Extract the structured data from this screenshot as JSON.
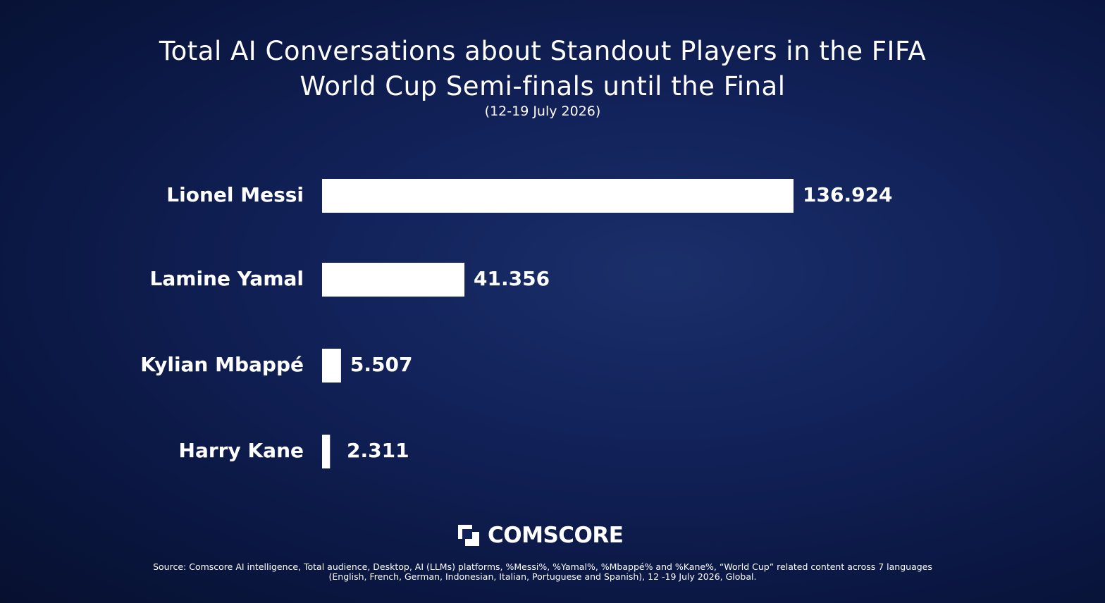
{
  "chart_data": {
    "type": "bar",
    "orientation": "horizontal",
    "title": "Total AI Conversations about Standout Players in the FIFA World Cup Semi-finals until the Final",
    "subtitle": "(12-19 July 2026)",
    "categories": [
      "Lionel Messi",
      "Lamine Yamal",
      "Kylian Mbappé",
      "Harry Kane"
    ],
    "values": [
      136924,
      41356,
      5507,
      2311
    ],
    "value_labels": [
      "136.924",
      "41.356",
      "5.507",
      "2.311"
    ],
    "color": "#ffffff",
    "logo": "COMSCORE",
    "source": "Source: Comscore AI intelligence, Total audience, Desktop, AI (LLMs) platforms, %Messi%, %Yamal%, %Mbappé% and %Kane%, “World Cup” related content across 7 languages (English, French, German, Indonesian, Italian, Portuguese and Spanish), 12 -19 July 2026, Global."
  }
}
